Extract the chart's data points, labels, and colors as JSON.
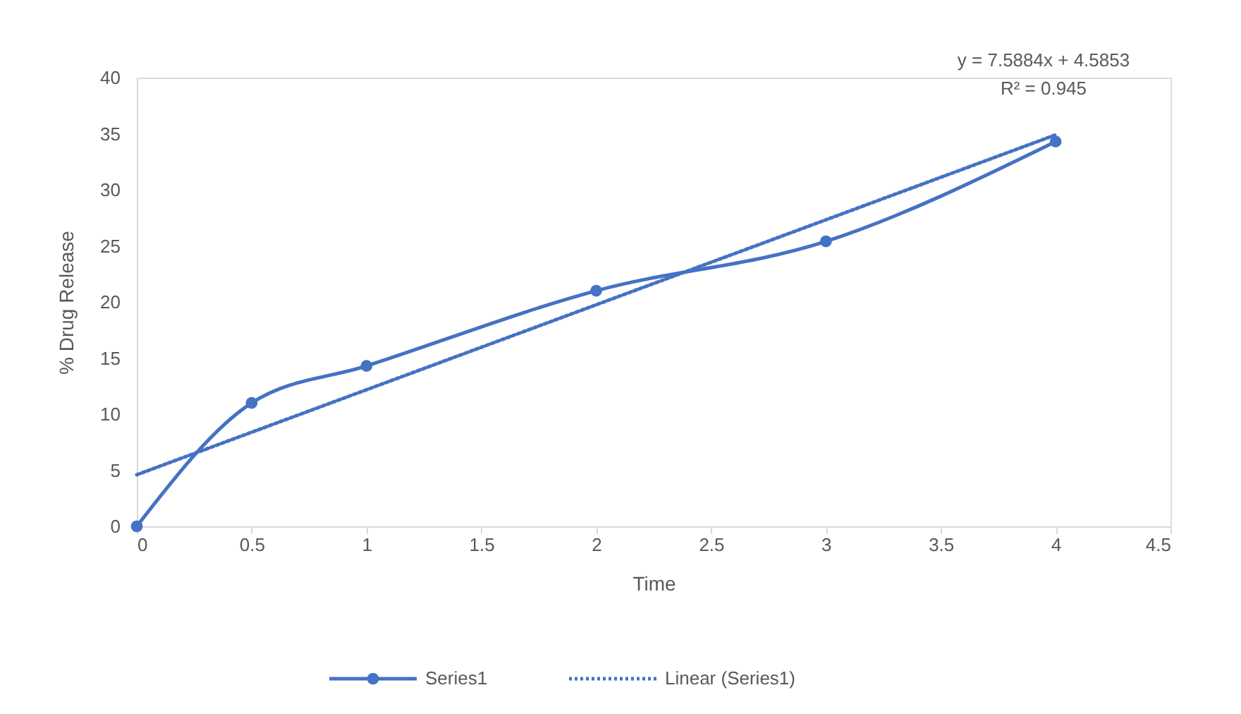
{
  "chart_data": {
    "type": "line",
    "xlabel": "Time",
    "ylabel": "% Drug Release",
    "x": [
      0,
      0.5,
      1,
      2,
      3,
      4
    ],
    "series": [
      {
        "name": "Series1",
        "color": "#4472c4",
        "values": [
          0,
          11,
          14.3,
          21,
          25.4,
          34.3
        ],
        "marker": "circle",
        "line_style": "solid"
      },
      {
        "name": "Linear (Series1)",
        "color": "#4472c4",
        "x": [
          0,
          4
        ],
        "values": [
          4.6,
          34.9
        ],
        "marker": "none",
        "line_style": "dotted"
      }
    ],
    "annotations": [
      "y = 7.5884x + 4.5853",
      "R² = 0.945"
    ],
    "xlim": [
      0,
      4.5
    ],
    "xticks": [
      0,
      0.5,
      1,
      1.5,
      2,
      2.5,
      3,
      3.5,
      4,
      4.5
    ],
    "ylim": [
      0,
      40
    ],
    "yticks": [
      0,
      5,
      10,
      15,
      20,
      25,
      30,
      35,
      40
    ],
    "grid": false,
    "legend": "bottom"
  }
}
